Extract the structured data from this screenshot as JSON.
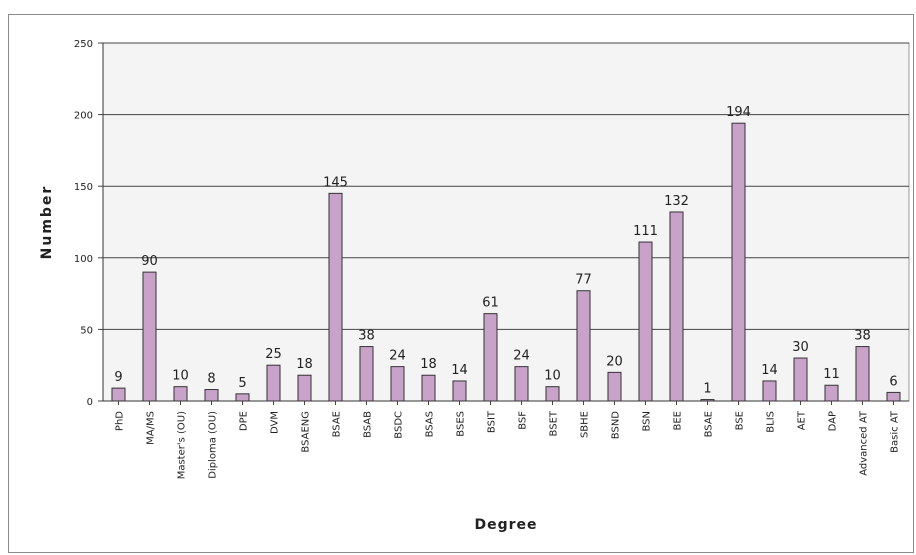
{
  "chart_data": {
    "type": "bar",
    "xlabel": "Degree",
    "ylabel": "Number",
    "ylim": [
      0,
      250
    ],
    "yticks": [
      0,
      50,
      100,
      150,
      200,
      250
    ],
    "grid": true,
    "legend": "none",
    "bar_color": "#c8a2c8",
    "bar_edge_color": "#333333",
    "plot_background": "#f4f4f4",
    "categories": [
      "PhD",
      "MA/MS",
      "Master's (OU)",
      "Diploma (OU)",
      "DPE",
      "DVM",
      "BSAENG",
      "BSAE",
      "BSAB",
      "BSDC",
      "BSAS",
      "BSES",
      "BSIT",
      "BSF",
      "BSET",
      "SBHE",
      "BSND",
      "BSN",
      "BEE",
      "BSAE",
      "BSE",
      "BLIS",
      "AET",
      "DAP",
      "Advanced AT",
      "Basic AT"
    ],
    "values": [
      9,
      90,
      10,
      8,
      5,
      25,
      18,
      145,
      38,
      24,
      18,
      14,
      61,
      24,
      10,
      77,
      20,
      111,
      132,
      1,
      194,
      14,
      30,
      11,
      38,
      6
    ],
    "data_labels": [
      "9",
      "90",
      "10",
      "8",
      "5",
      "25",
      "18",
      "145",
      "38",
      "24",
      "18",
      "14",
      "61",
      "24",
      "10",
      "77",
      "20",
      "111",
      "132",
      "1",
      "194",
      "14",
      "30",
      "11",
      "38",
      "6"
    ]
  }
}
